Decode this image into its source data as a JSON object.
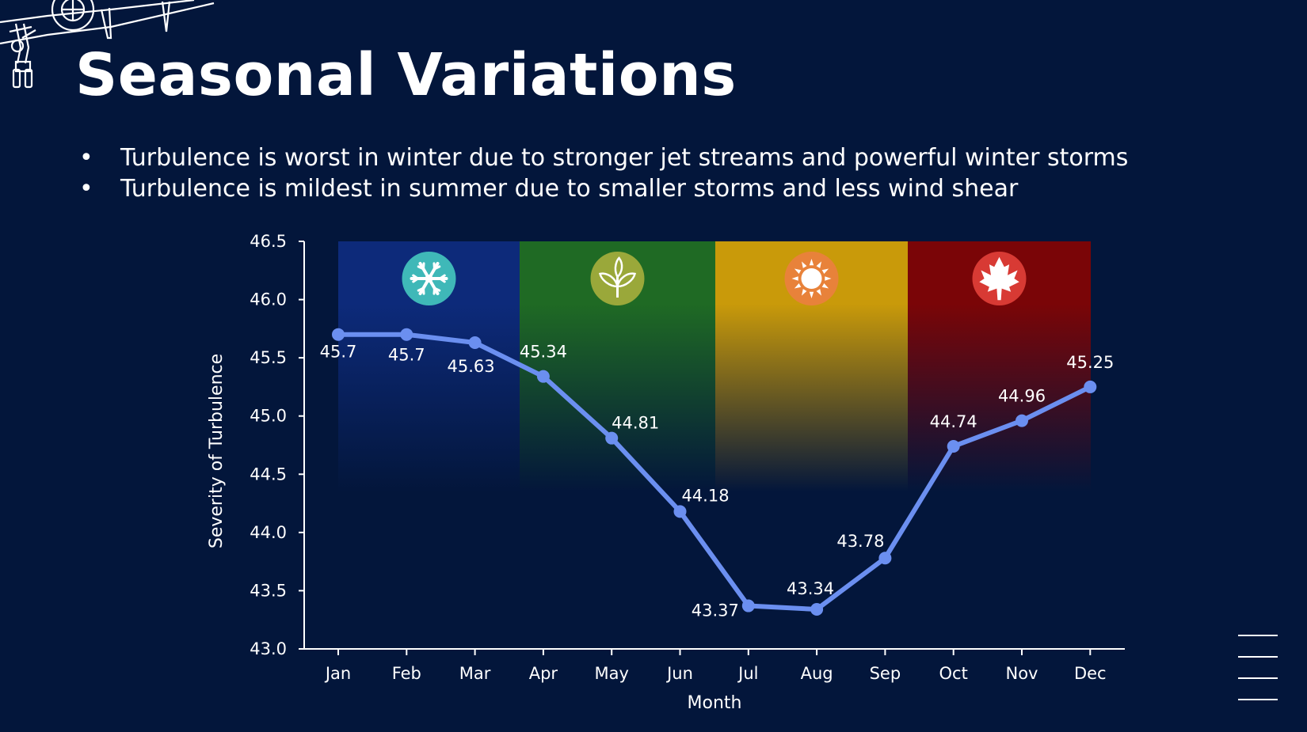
{
  "slide": {
    "title": "Seasonal Variations",
    "bullets": [
      "Turbulence is worst in winter due to stronger jet streams and powerful winter storms",
      "Turbulence is mildest in summer due to smaller storms and less wind shear"
    ],
    "decor_icons": [
      "airplane-outline-icon",
      "menu-lines-icon"
    ]
  },
  "chart_data": {
    "type": "line",
    "categories": [
      "Jan",
      "Feb",
      "Mar",
      "Apr",
      "May",
      "Jun",
      "Jul",
      "Aug",
      "Sep",
      "Oct",
      "Nov",
      "Dec"
    ],
    "series": [
      {
        "values": [
          45.7,
          45.7,
          45.63,
          45.34,
          44.81,
          44.18,
          43.37,
          43.34,
          43.78,
          44.74,
          44.96,
          45.25
        ],
        "color": "#6b8ff0"
      }
    ],
    "xlabel": "Month",
    "ylabel": "Severity of Turbulence",
    "ylim": [
      43.0,
      46.5
    ],
    "yticks": [
      "43.0",
      "43.5",
      "44.0",
      "44.5",
      "45.0",
      "45.5",
      "46.0",
      "46.5"
    ],
    "grid": false,
    "legend": "none",
    "season_bands": [
      {
        "season": "winter",
        "icon": "snowflake-icon",
        "color": "#0d2a7a",
        "icon_color": "#3fb8b8",
        "from_month": "Jan",
        "to_month": "Mar"
      },
      {
        "season": "spring",
        "icon": "leaf-icon",
        "color": "#1f6a24",
        "icon_color": "#9aa83a",
        "from_month": "Apr",
        "to_month": "Jun"
      },
      {
        "season": "summer",
        "icon": "sun-icon",
        "color": "#c99a0a",
        "icon_color": "#e8823a",
        "from_month": "Jul",
        "to_month": "Sep"
      },
      {
        "season": "autumn",
        "icon": "maple-leaf-icon",
        "color": "#7a0507",
        "icon_color": "#d83a34",
        "from_month": "Oct",
        "to_month": "Dec"
      }
    ]
  }
}
